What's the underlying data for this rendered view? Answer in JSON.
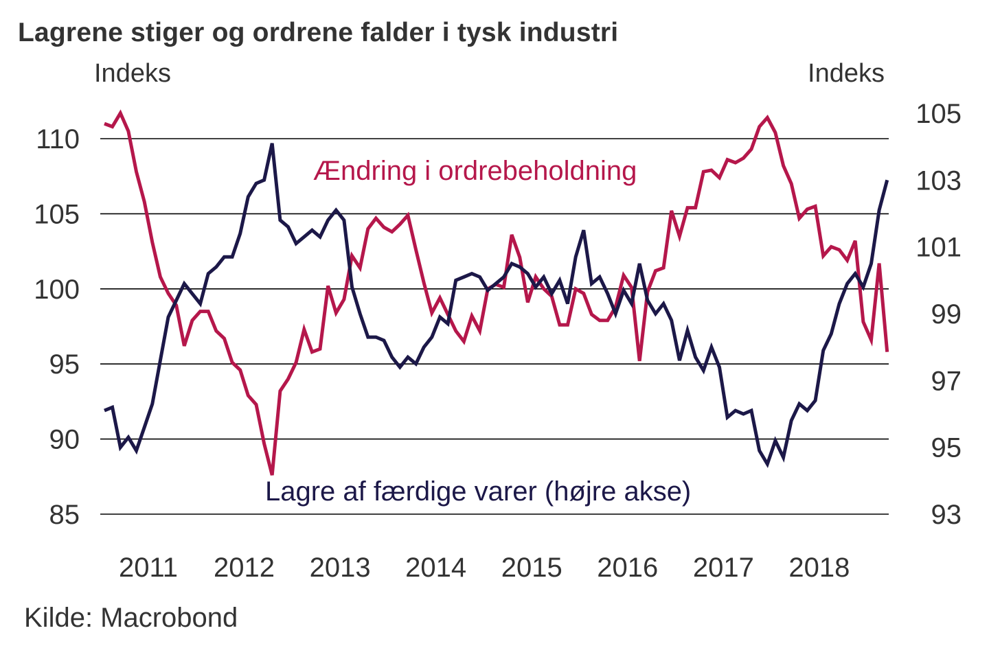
{
  "title": "Lagrene stiger og ordrene falder i tysk industri",
  "left_axis_unit": "Indeks",
  "right_axis_unit": "Indeks",
  "source": "Kilde: Macrobond",
  "colors": {
    "ordrebeholdning": "#B5174B",
    "lagre": "#1C1848",
    "gridline": "#000000",
    "text": "#333333"
  },
  "chart_data": {
    "type": "line",
    "title": "Lagrene stiger og ordrene falder i tysk industri",
    "xlabel": "",
    "ylabel": "Indeks",
    "y2label": "Indeks",
    "frequency": "monthly",
    "x_start": "2011-01",
    "x_end": "2019-03",
    "x_tick_labels": [
      "2011",
      "2012",
      "2013",
      "2014",
      "2015",
      "2016",
      "2017",
      "2018"
    ],
    "ylim": [
      85,
      110
    ],
    "y_ticks": [
      110,
      105,
      100,
      95,
      90,
      85
    ],
    "y2lim": [
      93,
      105
    ],
    "y2_ticks": [
      105,
      103,
      101,
      99,
      97,
      95,
      93
    ],
    "grid": true,
    "legend": "inline labels",
    "series": [
      {
        "name": "Ændring i ordrebeholdning",
        "axis": "left",
        "color": "#B5174B",
        "label_position": "upper-center",
        "values": [
          111.0,
          110.8,
          111.7,
          110.5,
          107.8,
          105.8,
          103.1,
          100.8,
          99.7,
          98.9,
          96.2,
          97.9,
          98.5,
          98.5,
          97.2,
          96.7,
          95.1,
          94.6,
          92.9,
          92.3,
          89.7,
          87.6,
          93.2,
          94.0,
          95.1,
          97.3,
          95.8,
          96.0,
          100.2,
          98.4,
          99.3,
          102.2,
          101.4,
          104.0,
          104.7,
          104.1,
          103.8,
          104.3,
          104.9,
          102.6,
          100.4,
          98.4,
          99.4,
          98.3,
          97.2,
          96.5,
          98.2,
          97.2,
          100.0,
          100.3,
          100.1,
          103.6,
          102.1,
          99.1,
          100.8,
          100.0,
          99.5,
          97.6,
          97.6,
          100.0,
          99.7,
          98.3,
          97.9,
          97.9,
          98.8,
          100.9,
          100.1,
          95.2,
          99.8,
          101.2,
          101.4,
          105.2,
          103.5,
          105.4,
          105.4,
          107.8,
          107.9,
          107.4,
          108.6,
          108.4,
          108.7,
          109.3,
          110.8,
          111.4,
          110.4,
          108.2,
          107.0,
          104.7,
          105.3,
          105.5,
          102.2,
          102.8,
          102.6,
          101.9,
          103.2,
          97.8,
          96.6,
          101.7,
          95.8
        ]
      },
      {
        "name": "Lagre af færdige varer (højre akse)",
        "axis": "right",
        "color": "#1C1848",
        "label_position": "lower-center",
        "values": [
          96.1,
          96.2,
          95.0,
          95.3,
          94.9,
          95.6,
          96.3,
          97.6,
          98.9,
          99.4,
          99.9,
          99.6,
          99.3,
          100.2,
          100.4,
          100.7,
          100.7,
          101.4,
          102.5,
          102.9,
          103.0,
          104.1,
          101.8,
          101.6,
          101.1,
          101.3,
          101.5,
          101.3,
          101.8,
          102.1,
          101.8,
          99.8,
          99.0,
          98.3,
          98.3,
          98.2,
          97.7,
          97.4,
          97.7,
          97.5,
          98.0,
          98.3,
          98.9,
          98.7,
          100.0,
          100.1,
          100.2,
          100.1,
          99.7,
          99.9,
          100.1,
          100.5,
          100.4,
          100.2,
          99.8,
          100.1,
          99.6,
          100.0,
          99.3,
          100.7,
          101.5,
          99.9,
          100.1,
          99.6,
          99.0,
          99.7,
          99.3,
          100.5,
          99.4,
          99.0,
          99.3,
          98.8,
          97.6,
          98.5,
          97.7,
          97.3,
          98.0,
          97.4,
          95.9,
          96.1,
          96.0,
          96.1,
          94.9,
          94.5,
          95.2,
          94.7,
          95.8,
          96.3,
          96.1,
          96.4,
          97.9,
          98.4,
          99.3,
          99.9,
          100.2,
          99.8,
          100.5,
          102.1,
          103.0
        ]
      }
    ]
  }
}
